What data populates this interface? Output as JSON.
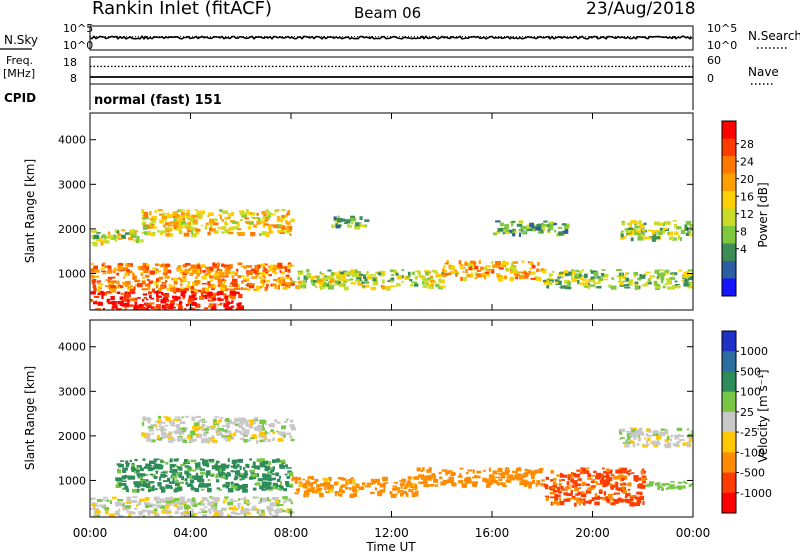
{
  "header": {
    "title": "Rankin Inlet (fitACF)",
    "beam": "Beam 06",
    "date": "23/Aug/2018"
  },
  "panels": {
    "nsky": {
      "label": "N.Sky",
      "left_ticks": [
        "10^5",
        "10^0"
      ],
      "right_ticks": [
        "10^5",
        "10^0"
      ],
      "right_label": "N.Search",
      "series": [
        {
          "name": "N.Sky",
          "style": "solid"
        },
        {
          "name": "N.Search",
          "style": "dotted"
        }
      ],
      "level_fraction": 0.35
    },
    "freq": {
      "label_line1": "Freq.",
      "label_line2": "[MHz]",
      "left_ticks": [
        "18",
        "8"
      ],
      "right_ticks": [
        "60",
        "0"
      ],
      "right_label": "Nave",
      "freq_fraction": 0.0,
      "nave_fraction": 0.17
    },
    "cpid": {
      "label": "CPID",
      "text": "normal (fast) 151"
    }
  },
  "axis_labels": {
    "y": "Slant Range [km]",
    "x": "Time UT"
  },
  "x_ticks": [
    "00:00",
    "04:00",
    "08:00",
    "12:00",
    "16:00",
    "20:00",
    "00:00"
  ],
  "colorbars": {
    "power": {
      "label": "Power [dB]",
      "ticks": [
        "28",
        "24",
        "20",
        "16",
        "12",
        "8",
        "4"
      ],
      "colors": [
        "#ff0000",
        "#ff3c00",
        "#ff7800",
        "#ffa000",
        "#ffd000",
        "#c8dc28",
        "#7dc83c",
        "#3c8c5a",
        "#2d5fa0",
        "#1414ff"
      ]
    },
    "velocity": {
      "label": "Velocity [m s⁻¹]",
      "ticks": [
        "1000",
        "500",
        "100",
        "25",
        "-25",
        "-100",
        "-500",
        "-1000"
      ],
      "colors": [
        "#1e32c8",
        "#2d6ea0",
        "#2d8c5a",
        "#78c846",
        "#c8c8c8",
        "#ffc800",
        "#ff8c00",
        "#ff3c00",
        "#ff0000"
      ]
    }
  },
  "chart_data": [
    {
      "type": "heatmap",
      "name": "Power",
      "x_range_hours": [
        0,
        24
      ],
      "y_range_km": [
        180,
        4600
      ],
      "yticks": [
        1000,
        2000,
        3000,
        4000
      ],
      "xticks_hours": [
        0,
        4,
        8,
        12,
        16,
        20,
        24
      ],
      "clim": [
        0,
        30
      ],
      "unit": "dB",
      "echo_regions": [
        {
          "t": [
            0,
            6
          ],
          "r": [
            180,
            650
          ],
          "value": 28
        },
        {
          "t": [
            0,
            8
          ],
          "r": [
            650,
            1250
          ],
          "value": 21
        },
        {
          "t": [
            8,
            14
          ],
          "r": [
            700,
            1100
          ],
          "value": 13
        },
        {
          "t": [
            14,
            18
          ],
          "r": [
            900,
            1300
          ],
          "value": 19
        },
        {
          "t": [
            18,
            24
          ],
          "r": [
            700,
            1100
          ],
          "value": 12
        },
        {
          "t": [
            2,
            8
          ],
          "r": [
            1900,
            2450
          ],
          "value": 17
        },
        {
          "t": [
            0,
            2
          ],
          "r": [
            1700,
            2000
          ],
          "value": 14
        },
        {
          "t": [
            9.5,
            11
          ],
          "r": [
            2050,
            2300
          ],
          "value": 10
        },
        {
          "t": [
            16,
            19
          ],
          "r": [
            1900,
            2200
          ],
          "value": 9
        },
        {
          "t": [
            21,
            24
          ],
          "r": [
            1800,
            2200
          ],
          "value": 12
        }
      ]
    },
    {
      "type": "heatmap",
      "name": "Velocity",
      "x_range_hours": [
        0,
        24
      ],
      "y_range_km": [
        180,
        4600
      ],
      "yticks": [
        1000,
        2000,
        3000,
        4000
      ],
      "xticks_hours": [
        0,
        4,
        8,
        12,
        16,
        20,
        24
      ],
      "color_levels": [
        1000,
        500,
        100,
        25,
        -25,
        -100,
        -500,
        -1000
      ],
      "unit": "m s^-1",
      "echo_regions": [
        {
          "t": [
            0,
            8
          ],
          "r": [
            180,
            650
          ],
          "value": 0
        },
        {
          "t": [
            1,
            8
          ],
          "r": [
            800,
            1500
          ],
          "value": 150
        },
        {
          "t": [
            8,
            13
          ],
          "r": [
            700,
            1100
          ],
          "value": -150
        },
        {
          "t": [
            13,
            18
          ],
          "r": [
            900,
            1300
          ],
          "value": -300
        },
        {
          "t": [
            18,
            22
          ],
          "r": [
            500,
            1300
          ],
          "value": -600
        },
        {
          "t": [
            22,
            24
          ],
          "r": [
            800,
            1000
          ],
          "value": 60
        },
        {
          "t": [
            2,
            8
          ],
          "r": [
            1900,
            2450
          ],
          "value": 0
        },
        {
          "t": [
            21,
            24
          ],
          "r": [
            1800,
            2200
          ],
          "value": 0
        }
      ]
    }
  ]
}
